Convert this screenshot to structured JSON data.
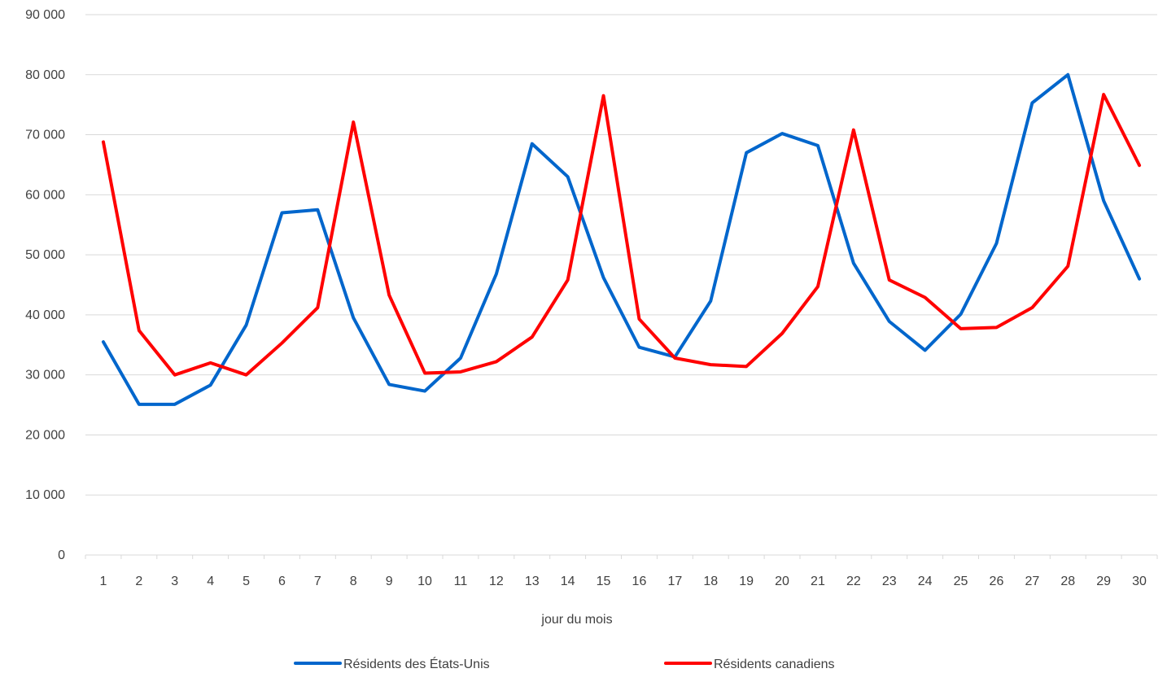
{
  "chart_data": {
    "type": "line",
    "title": "",
    "xlabel": "jour du mois",
    "ylabel": "",
    "categories": [
      "1",
      "2",
      "3",
      "4",
      "5",
      "6",
      "7",
      "8",
      "9",
      "10",
      "11",
      "12",
      "13",
      "14",
      "15",
      "16",
      "17",
      "18",
      "19",
      "20",
      "21",
      "22",
      "23",
      "24",
      "25",
      "26",
      "27",
      "28",
      "29",
      "30"
    ],
    "ylim": [
      0,
      90000
    ],
    "yticks": [
      0,
      10000,
      20000,
      30000,
      40000,
      50000,
      60000,
      70000,
      80000,
      90000
    ],
    "ytick_labels": [
      "0",
      "10 000",
      "20 000",
      "30 000",
      "40 000",
      "50 000",
      "60 000",
      "70 000",
      "80 000",
      "90 000"
    ],
    "grid": "horizontal",
    "legend_position": "bottom",
    "series": [
      {
        "name": "Résidents des États-Unis",
        "color": "#0066CC",
        "values": [
          35500,
          25100,
          25100,
          28300,
          38300,
          57000,
          57500,
          39500,
          28400,
          27300,
          32800,
          46800,
          68500,
          63000,
          46200,
          34600,
          33000,
          42300,
          67000,
          70200,
          68200,
          48600,
          38900,
          34100,
          40100,
          51900,
          75300,
          80000,
          59000,
          46000
        ]
      },
      {
        "name": "Résidents canadiens",
        "color": "#FF0000",
        "values": [
          68800,
          37400,
          30000,
          32000,
          30000,
          35300,
          41200,
          72100,
          43300,
          30300,
          30500,
          32200,
          36300,
          45800,
          76500,
          39300,
          32800,
          31700,
          31400,
          36900,
          44700,
          70800,
          45800,
          42900,
          37700,
          37900,
          41200,
          48100,
          76700,
          64900
        ]
      }
    ]
  }
}
